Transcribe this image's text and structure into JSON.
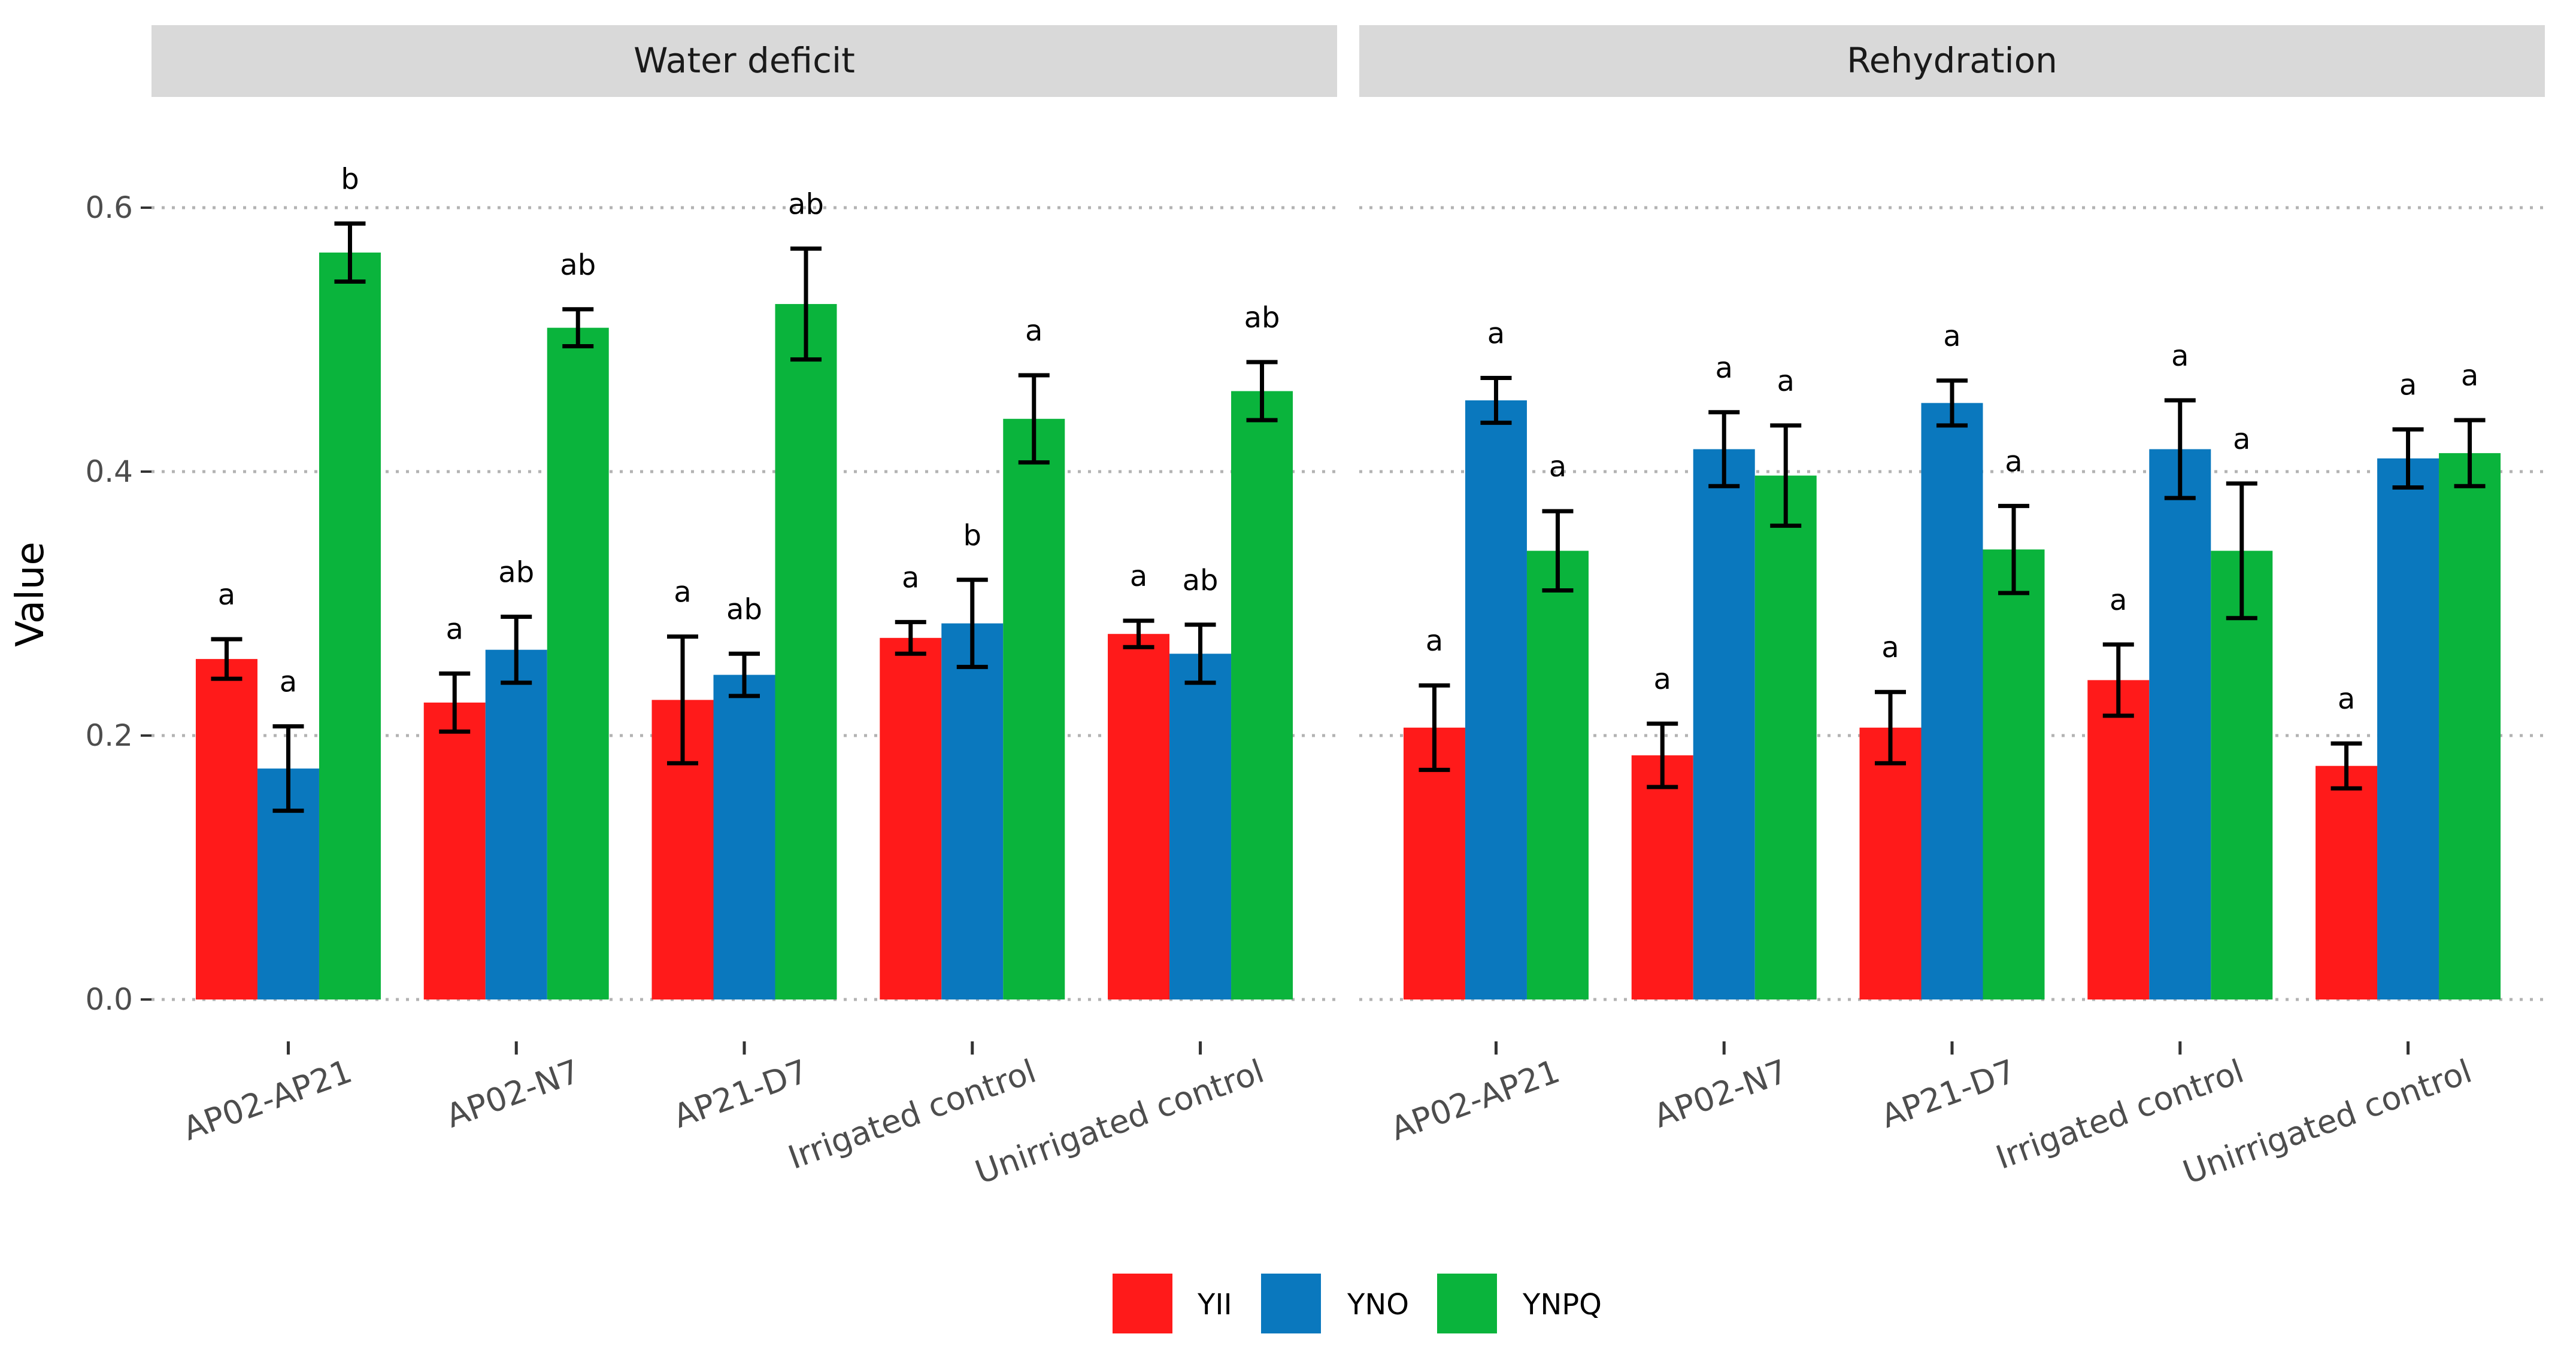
{
  "chart_data": {
    "type": "bar",
    "ylabel": "Value",
    "xlabel": "",
    "ylim": [
      0,
      0.6
    ],
    "yticks": [
      "0.0",
      "0.2",
      "0.4",
      "0.6"
    ],
    "grid": true,
    "legend_position": "bottom",
    "series_names": [
      "YII",
      "YNO",
      "YNPQ"
    ],
    "colors": {
      "YII": "#ff1a1a",
      "YNO": "#0a78be",
      "YNPQ": "#0ab43c"
    },
    "panels": [
      {
        "title": "Water deficit",
        "categories": [
          "AP02-AP21",
          "AP02-N7",
          "AP21-D7",
          "Irrigated control",
          "Unirrigated control"
        ],
        "series": [
          {
            "name": "YII",
            "values": [
              0.258,
              0.225,
              0.227,
              0.274,
              0.277
            ],
            "errors": [
              0.015,
              0.022,
              0.048,
              0.012,
              0.01
            ],
            "labels": [
              "a",
              "a",
              "a",
              "a",
              "a"
            ]
          },
          {
            "name": "YNO",
            "values": [
              0.175,
              0.265,
              0.246,
              0.285,
              0.262
            ],
            "errors": [
              0.032,
              0.025,
              0.016,
              0.033,
              0.022
            ],
            "labels": [
              "a",
              "ab",
              "ab",
              "b",
              "ab"
            ]
          },
          {
            "name": "YNPQ",
            "values": [
              0.566,
              0.509,
              0.527,
              0.44,
              0.461
            ],
            "errors": [
              0.022,
              0.014,
              0.042,
              0.033,
              0.022
            ],
            "labels": [
              "b",
              "ab",
              "ab",
              "a",
              "ab"
            ]
          }
        ]
      },
      {
        "title": "Rehydration",
        "categories": [
          "AP02-AP21",
          "AP02-N7",
          "AP21-D7",
          "Irrigated control",
          "Unirrigated control"
        ],
        "series": [
          {
            "name": "YII",
            "values": [
              0.206,
              0.185,
              0.206,
              0.242,
              0.177
            ],
            "errors": [
              0.032,
              0.024,
              0.027,
              0.027,
              0.017
            ],
            "labels": [
              "a",
              "a",
              "a",
              "a",
              "a"
            ]
          },
          {
            "name": "YNO",
            "values": [
              0.454,
              0.417,
              0.452,
              0.417,
              0.41
            ],
            "errors": [
              0.017,
              0.028,
              0.017,
              0.037,
              0.022
            ],
            "labels": [
              "a",
              "a",
              "a",
              "a",
              "a"
            ]
          },
          {
            "name": "YNPQ",
            "values": [
              0.34,
              0.397,
              0.341,
              0.34,
              0.414
            ],
            "errors": [
              0.03,
              0.038,
              0.033,
              0.051,
              0.025
            ],
            "labels": [
              "a",
              "a",
              "a",
              "a",
              "a"
            ]
          }
        ]
      }
    ]
  }
}
